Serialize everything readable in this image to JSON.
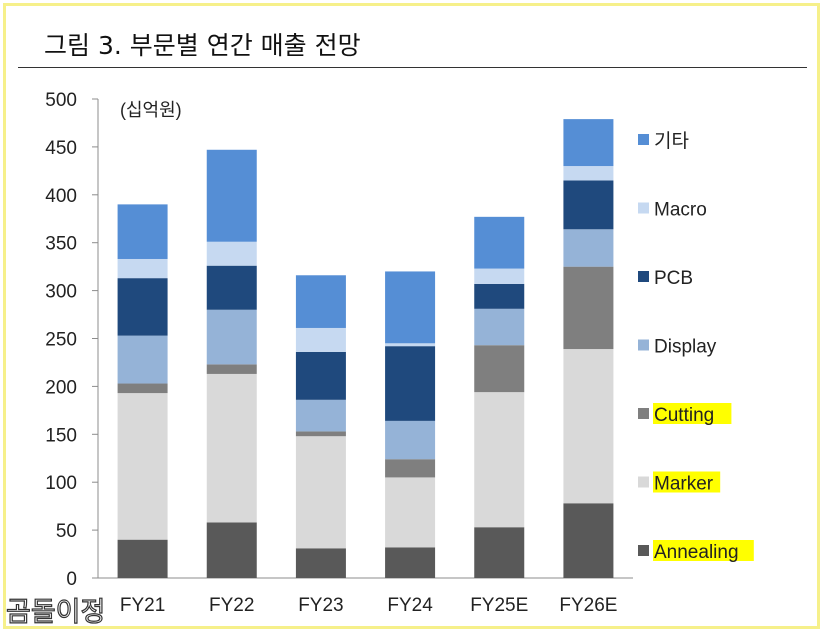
{
  "figure": {
    "title": "그림 3. 부문별 연간 매출 전망"
  },
  "watermark": "곰돌이정",
  "chart_data": {
    "type": "bar",
    "stacked": true,
    "title": "그림 3. 부문별 연간 매출 전망",
    "unit_label": "(십억원)",
    "xlabel": "",
    "ylabel": "",
    "ylim": [
      0,
      500
    ],
    "yticks": [
      0,
      50,
      100,
      150,
      200,
      250,
      300,
      350,
      400,
      450,
      500
    ],
    "categories": [
      "FY21",
      "FY22",
      "FY23",
      "FY24",
      "FY25E",
      "FY26E"
    ],
    "grid": false,
    "legend_position": "right",
    "series": [
      {
        "name": "Annealing",
        "color": "#595959",
        "highlight": true,
        "values": [
          40,
          58,
          31,
          32,
          53,
          78
        ]
      },
      {
        "name": "Marker",
        "color": "#d9d9d9",
        "highlight": true,
        "values": [
          153,
          155,
          117,
          73,
          141,
          161
        ]
      },
      {
        "name": "Cutting",
        "color": "#7f7f7f",
        "highlight": true,
        "values": [
          10,
          10,
          5,
          19,
          49,
          86
        ]
      },
      {
        "name": "Display",
        "color": "#95b3d7",
        "highlight": false,
        "values": [
          50,
          57,
          33,
          40,
          38,
          39
        ]
      },
      {
        "name": "PCB",
        "color": "#1f497d",
        "highlight": false,
        "values": [
          60,
          46,
          50,
          78,
          26,
          51
        ]
      },
      {
        "name": "Macro",
        "color": "#c6d9f1",
        "highlight": false,
        "values": [
          20,
          25,
          25,
          3,
          16,
          15
        ]
      },
      {
        "name": "기타",
        "color": "#558ed5",
        "highlight": false,
        "values": [
          57,
          96,
          55,
          75,
          54,
          49
        ]
      }
    ]
  }
}
